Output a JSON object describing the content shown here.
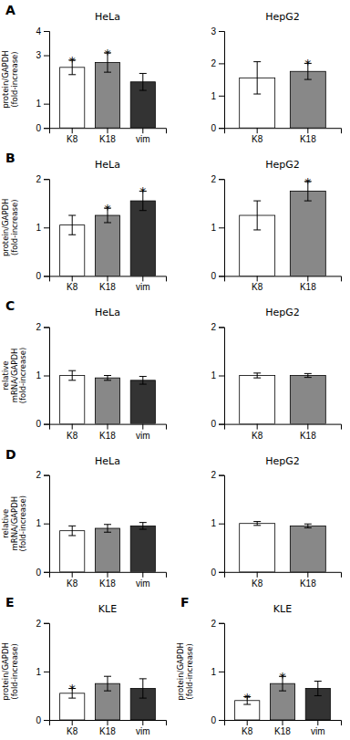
{
  "chart_data": [
    {
      "type": "bar",
      "title": "A",
      "subtitle": "HeLa",
      "ylabel": "protein/GAPDH\n(fold-increase)",
      "categories": [
        "K8",
        "K18",
        "vim"
      ],
      "values": [
        2.5,
        2.7,
        1.9
      ],
      "errors": [
        0.3,
        0.4,
        0.35
      ],
      "annotations": [
        "*",
        "*",
        null
      ],
      "colors": [
        "white",
        "#888888",
        "#333333"
      ],
      "ylim": [
        0,
        4
      ],
      "yticks": [
        0,
        1,
        3,
        4
      ]
    },
    {
      "type": "bar",
      "subtitle": "HepG2",
      "categories": [
        "K8",
        "K18"
      ],
      "values": [
        1.55,
        1.75
      ],
      "errors": [
        0.5,
        0.25
      ],
      "annotations": [
        null,
        "*"
      ],
      "colors": [
        "white",
        "#888888"
      ],
      "ylim": [
        0,
        3
      ],
      "yticks": [
        0,
        1,
        2,
        3
      ]
    },
    {
      "type": "bar",
      "title": "B",
      "subtitle": "HeLa",
      "ylabel": "protein/GAPDH\n(fold-increase)",
      "categories": [
        "K8",
        "K18",
        "vim"
      ],
      "values": [
        1.05,
        1.25,
        1.55
      ],
      "errors": [
        0.2,
        0.15,
        0.2
      ],
      "annotations": [
        null,
        "*",
        "*"
      ],
      "colors": [
        "white",
        "#888888",
        "#333333"
      ],
      "ylim": [
        0,
        2
      ],
      "yticks": [
        0,
        1,
        2
      ]
    },
    {
      "type": "bar",
      "subtitle": "HepG2",
      "categories": [
        "K8",
        "K18"
      ],
      "values": [
        1.25,
        1.75
      ],
      "errors": [
        0.3,
        0.2
      ],
      "annotations": [
        null,
        "*"
      ],
      "colors": [
        "white",
        "#888888"
      ],
      "ylim": [
        0,
        2
      ],
      "yticks": [
        0,
        1,
        2
      ]
    },
    {
      "type": "bar",
      "title": "C",
      "subtitle": "HeLa",
      "ylabel": "relative\nmRNA/GAPDH\n(fold-increase)",
      "categories": [
        "K8",
        "K18",
        "vim"
      ],
      "values": [
        1.0,
        0.95,
        0.9
      ],
      "errors": [
        0.1,
        0.05,
        0.08
      ],
      "colors": [
        "white",
        "#888888",
        "#333333"
      ],
      "ylim": [
        0,
        2
      ],
      "yticks": [
        0,
        1,
        2
      ]
    },
    {
      "type": "bar",
      "subtitle": "HepG2",
      "categories": [
        "K8",
        "K18"
      ],
      "values": [
        1.0,
        1.0
      ],
      "errors": [
        0.05,
        0.04
      ],
      "colors": [
        "white",
        "#888888"
      ],
      "ylim": [
        0,
        2
      ],
      "yticks": [
        0,
        1,
        2
      ]
    },
    {
      "type": "bar",
      "title": "D",
      "subtitle": "HeLa",
      "ylabel": "relative\nmRNA/GAPDH\n(fold-increase)",
      "categories": [
        "K8",
        "K18",
        "vim"
      ],
      "values": [
        0.85,
        0.9,
        0.95
      ],
      "errors": [
        0.1,
        0.08,
        0.07
      ],
      "colors": [
        "white",
        "#888888",
        "#333333"
      ],
      "ylim": [
        0,
        2
      ],
      "yticks": [
        0,
        1,
        2
      ]
    },
    {
      "type": "bar",
      "subtitle": "HepG2",
      "categories": [
        "K8",
        "K18"
      ],
      "values": [
        1.0,
        0.95
      ],
      "errors": [
        0.04,
        0.04
      ],
      "colors": [
        "white",
        "#888888"
      ],
      "ylim": [
        0,
        2
      ],
      "yticks": [
        0,
        1,
        2
      ]
    },
    {
      "type": "bar",
      "title": "E",
      "subtitle": "KLE",
      "ylabel": "protein/GAPDH\n(fold-increase)",
      "categories": [
        "K8",
        "K18",
        "vim"
      ],
      "values": [
        0.55,
        0.75,
        0.65
      ],
      "errors": [
        0.1,
        0.15,
        0.2
      ],
      "annotations": [
        "*",
        null,
        null
      ],
      "colors": [
        "white",
        "#888888",
        "#333333"
      ],
      "ylim": [
        0,
        2
      ],
      "yticks": [
        0,
        1,
        2
      ]
    },
    {
      "type": "bar",
      "title": "F",
      "subtitle": "KLE",
      "ylabel": "protein/GAPDH\n(fold-increase)",
      "categories": [
        "K8",
        "K18",
        "vim"
      ],
      "values": [
        0.4,
        0.75,
        0.65
      ],
      "errors": [
        0.08,
        0.15,
        0.15
      ],
      "annotations": [
        "*",
        "*",
        null
      ],
      "colors": [
        "white",
        "#888888",
        "#333333"
      ],
      "ylim": [
        0,
        2
      ],
      "yticks": [
        0,
        1,
        2
      ]
    }
  ]
}
